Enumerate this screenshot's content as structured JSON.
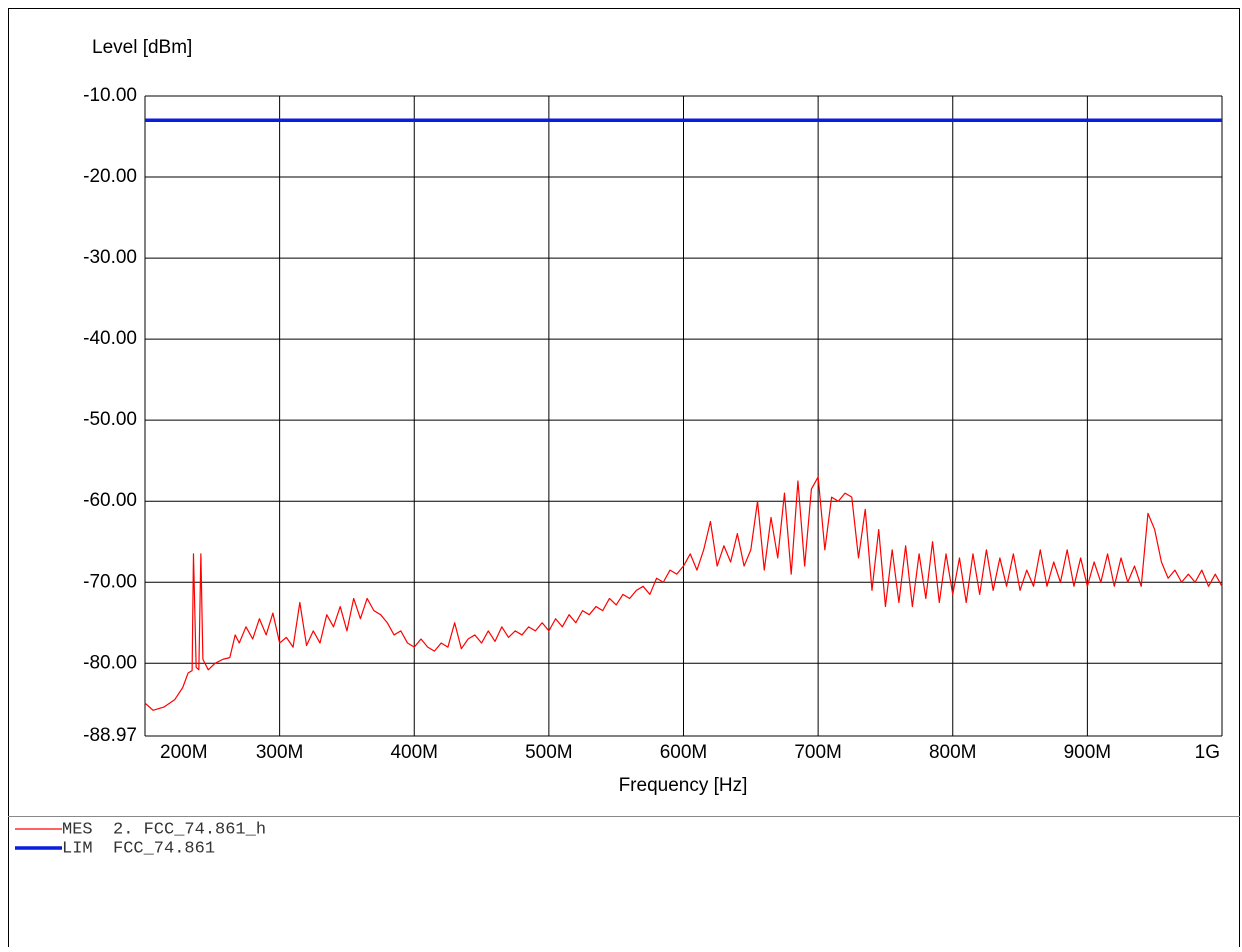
{
  "chart_data": {
    "type": "line",
    "ylabel": "Level [dBm]",
    "xlabel": "Frequency [Hz]",
    "xlim": [
      200000000,
      1000000000
    ],
    "ylim": [
      -88.97,
      -10
    ],
    "xticks": [
      {
        "value": 200000000,
        "label": "200M"
      },
      {
        "value": 300000000,
        "label": "300M"
      },
      {
        "value": 400000000,
        "label": "400M"
      },
      {
        "value": 500000000,
        "label": "500M"
      },
      {
        "value": 600000000,
        "label": "600M"
      },
      {
        "value": 700000000,
        "label": "700M"
      },
      {
        "value": 800000000,
        "label": "800M"
      },
      {
        "value": 900000000,
        "label": "900M"
      },
      {
        "value": 1000000000,
        "label": "1G"
      }
    ],
    "yticks": [
      {
        "value": -10,
        "label": "-10.00"
      },
      {
        "value": -20,
        "label": "-20.00"
      },
      {
        "value": -30,
        "label": "-30.00"
      },
      {
        "value": -40,
        "label": "-40.00"
      },
      {
        "value": -50,
        "label": "-50.00"
      },
      {
        "value": -60,
        "label": "-60.00"
      },
      {
        "value": -70,
        "label": "-70.00"
      },
      {
        "value": -80,
        "label": "-80.00"
      },
      {
        "value": -88.97,
        "label": "-88.97"
      }
    ],
    "grid": true,
    "series": [
      {
        "name": "MES",
        "description": "2. FCC_74.861_h",
        "color": "#ff0000",
        "x": [
          200000000,
          206000000,
          214000000,
          222000000,
          228000000,
          232000000,
          235000000,
          236000000,
          238000000,
          240000000,
          241500000,
          243000000,
          247000000,
          252000000,
          258000000,
          263000000,
          267000000,
          270000000,
          275000000,
          280000000,
          285000000,
          290000000,
          295000000,
          300000000,
          305000000,
          310000000,
          315000000,
          320000000,
          325000000,
          330000000,
          335000000,
          340000000,
          345000000,
          350000000,
          355000000,
          360000000,
          365000000,
          370000000,
          375000000,
          380000000,
          385000000,
          390000000,
          395000000,
          400000000,
          405000000,
          410000000,
          415000000,
          420000000,
          425000000,
          430000000,
          435000000,
          440000000,
          445000000,
          450000000,
          455000000,
          460000000,
          465000000,
          470000000,
          475000000,
          480000000,
          485000000,
          490000000,
          495000000,
          500000000,
          505000000,
          510000000,
          515000000,
          520000000,
          525000000,
          530000000,
          535000000,
          540000000,
          545000000,
          550000000,
          555000000,
          560000000,
          565000000,
          570000000,
          575000000,
          580000000,
          585000000,
          590000000,
          595000000,
          600000000,
          605000000,
          610000000,
          615000000,
          620000000,
          625000000,
          630000000,
          635000000,
          640000000,
          645000000,
          650000000,
          655000000,
          660000000,
          665000000,
          670000000,
          675000000,
          680000000,
          685000000,
          690000000,
          695000000,
          700000000,
          705000000,
          710000000,
          715000000,
          720000000,
          725000000,
          730000000,
          735000000,
          740000000,
          745000000,
          750000000,
          755000000,
          760000000,
          765000000,
          770000000,
          775000000,
          780000000,
          785000000,
          790000000,
          795000000,
          800000000,
          805000000,
          810000000,
          815000000,
          820000000,
          825000000,
          830000000,
          835000000,
          840000000,
          845000000,
          850000000,
          855000000,
          860000000,
          865000000,
          870000000,
          875000000,
          880000000,
          885000000,
          890000000,
          895000000,
          900000000,
          905000000,
          910000000,
          915000000,
          920000000,
          925000000,
          930000000,
          935000000,
          940000000,
          945000000,
          950000000,
          955000000,
          960000000,
          965000000,
          970000000,
          975000000,
          980000000,
          985000000,
          990000000,
          995000000,
          1000000000
        ],
        "values": [
          -84.9,
          -85.8,
          -85.4,
          -84.5,
          -83.0,
          -81.2,
          -80.9,
          -66.5,
          -80.5,
          -80.8,
          -66.5,
          -79.5,
          -80.8,
          -80.0,
          -79.5,
          -79.3,
          -76.5,
          -77.5,
          -75.5,
          -77.0,
          -74.5,
          -76.5,
          -73.8,
          -77.5,
          -76.8,
          -78.0,
          -72.5,
          -77.8,
          -76.0,
          -77.5,
          -74.0,
          -75.5,
          -73.0,
          -76.0,
          -72.0,
          -74.5,
          -72.0,
          -73.5,
          -74.0,
          -75.0,
          -76.5,
          -76.0,
          -77.5,
          -78.0,
          -77.0,
          -78.0,
          -78.5,
          -77.5,
          -78.0,
          -75.0,
          -78.2,
          -77.0,
          -76.5,
          -77.5,
          -76.0,
          -77.3,
          -75.5,
          -76.8,
          -76.0,
          -76.5,
          -75.5,
          -76.0,
          -75.0,
          -76.0,
          -74.5,
          -75.5,
          -74.0,
          -75.0,
          -73.5,
          -74.0,
          -73.0,
          -73.5,
          -72.0,
          -72.8,
          -71.5,
          -72.0,
          -71.0,
          -70.5,
          -71.5,
          -69.5,
          -70.0,
          -68.5,
          -69.0,
          -68.0,
          -66.5,
          -68.5,
          -66.0,
          -62.5,
          -68.0,
          -65.5,
          -67.5,
          -64.0,
          -68.0,
          -66.0,
          -60.0,
          -68.5,
          -62.0,
          -67.0,
          -59.0,
          -69.0,
          -57.5,
          -68.0,
          -58.5,
          -57.0,
          -66.0,
          -59.5,
          -60.0,
          -59.0,
          -59.5,
          -67.0,
          -61.0,
          -71.0,
          -63.5,
          -73.0,
          -66.0,
          -72.5,
          -65.5,
          -73.0,
          -66.5,
          -72.0,
          -65.0,
          -72.5,
          -66.5,
          -71.5,
          -67.0,
          -72.5,
          -66.5,
          -71.5,
          -66.0,
          -71.0,
          -67.0,
          -70.5,
          -66.5,
          -71.0,
          -68.5,
          -70.5,
          -66.0,
          -70.5,
          -67.5,
          -70.0,
          -66.0,
          -70.5,
          -67.0,
          -70.5,
          -67.5,
          -70.0,
          -66.5,
          -70.5,
          -67.0,
          -70.0,
          -68.0,
          -70.5,
          -61.5,
          -63.5,
          -67.5,
          -69.5,
          -68.5,
          -70.0,
          -69.0,
          -70.0,
          -68.5,
          -70.5,
          -69.0,
          -70.5
        ]
      },
      {
        "name": "LIM",
        "description": "FCC_74.861",
        "color": "#0a1ee0",
        "x": [
          200000000,
          1000000000
        ],
        "values": [
          -13,
          -13
        ]
      }
    ]
  }
}
